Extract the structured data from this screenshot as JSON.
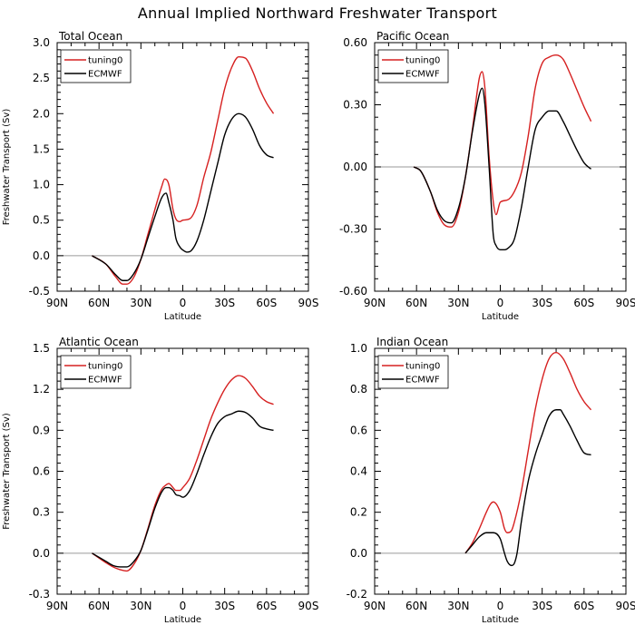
{
  "figure_title": "Annual Implied Northward Freshwater Transport",
  "chart_data": [
    {
      "type": "line",
      "title": "Total Ocean",
      "xlabel": "Latitude",
      "ylabel": "Freshwater Transport (Sv)",
      "xlim": [
        -90,
        90
      ],
      "ylim": [
        -0.5,
        3.0
      ],
      "x_ticks": [
        -90,
        -60,
        -30,
        0,
        30,
        60,
        90
      ],
      "x_tick_labels": [
        "90N",
        "60N",
        "30N",
        "0",
        "30S",
        "60S",
        "90S"
      ],
      "y_ticks": [
        -0.5,
        0.0,
        0.5,
        1.0,
        1.5,
        2.0,
        2.5,
        3.0
      ],
      "y_tick_labels": [
        "-0.5",
        "0.0",
        "0.5",
        "1.0",
        "1.5",
        "2.0",
        "2.5",
        "3.0"
      ],
      "zero_line": true,
      "legend": "top-left",
      "series": [
        {
          "name": "tuning0",
          "color": "#d62020",
          "x": [
            -65,
            -55,
            -48,
            -43,
            -40,
            -35,
            -30,
            -25,
            -20,
            -15,
            -13,
            -10,
            -7,
            -5,
            -2,
            0,
            5,
            10,
            15,
            20,
            25,
            30,
            35,
            40,
            45,
            50,
            55,
            60,
            65
          ],
          "y": [
            0.0,
            -0.12,
            -0.3,
            -0.4,
            -0.4,
            -0.3,
            -0.05,
            0.3,
            0.65,
            0.98,
            1.08,
            1.0,
            0.65,
            0.52,
            0.48,
            0.5,
            0.52,
            0.7,
            1.1,
            1.45,
            1.9,
            2.35,
            2.65,
            2.8,
            2.78,
            2.6,
            2.35,
            2.15,
            2.0
          ]
        },
        {
          "name": "ECMWF",
          "color": "#000000",
          "x": [
            -65,
            -55,
            -48,
            -43,
            -40,
            -35,
            -30,
            -25,
            -20,
            -15,
            -12,
            -10,
            -7,
            -5,
            -2,
            0,
            3,
            6,
            10,
            15,
            20,
            25,
            30,
            35,
            40,
            45,
            50,
            55,
            60,
            65
          ],
          "y": [
            0.0,
            -0.12,
            -0.27,
            -0.35,
            -0.35,
            -0.25,
            -0.05,
            0.25,
            0.55,
            0.82,
            0.88,
            0.75,
            0.5,
            0.25,
            0.12,
            0.08,
            0.05,
            0.07,
            0.2,
            0.5,
            0.9,
            1.3,
            1.7,
            1.92,
            2.0,
            1.95,
            1.78,
            1.55,
            1.42,
            1.38
          ]
        }
      ]
    },
    {
      "type": "line",
      "title": "Pacific Ocean",
      "xlabel": "Latitude",
      "ylabel": "",
      "xlim": [
        -90,
        90
      ],
      "ylim": [
        -0.6,
        0.6
      ],
      "x_ticks": [
        -90,
        -60,
        -30,
        0,
        30,
        60,
        90
      ],
      "x_tick_labels": [
        "90N",
        "60N",
        "30N",
        "0",
        "30S",
        "60S",
        "90S"
      ],
      "y_ticks": [
        -0.6,
        -0.3,
        0.0,
        0.3,
        0.6
      ],
      "y_tick_labels": [
        "-0.60",
        "-0.30",
        "0.00",
        "0.30",
        "0.60"
      ],
      "zero_line": true,
      "legend": "top-left",
      "series": [
        {
          "name": "tuning0",
          "color": "#d62020",
          "x": [
            -62,
            -57,
            -50,
            -45,
            -40,
            -35,
            -30,
            -25,
            -20,
            -15,
            -13,
            -11,
            -8,
            -5,
            -3,
            0,
            5,
            10,
            15,
            20,
            25,
            30,
            35,
            40,
            45,
            50,
            55,
            60,
            65
          ],
          "y": [
            0.0,
            -0.02,
            -0.12,
            -0.22,
            -0.28,
            -0.29,
            -0.22,
            -0.05,
            0.18,
            0.43,
            0.46,
            0.38,
            0.05,
            -0.17,
            -0.23,
            -0.17,
            -0.16,
            -0.12,
            -0.03,
            0.15,
            0.38,
            0.5,
            0.53,
            0.54,
            0.52,
            0.45,
            0.37,
            0.29,
            0.22
          ]
        },
        {
          "name": "ECMWF",
          "color": "#000000",
          "x": [
            -62,
            -57,
            -50,
            -45,
            -40,
            -35,
            -30,
            -25,
            -20,
            -15,
            -13,
            -11,
            -8,
            -5,
            -3,
            0,
            3,
            6,
            10,
            15,
            20,
            25,
            30,
            35,
            40,
            45,
            50,
            55,
            60,
            63,
            65
          ],
          "y": [
            0.0,
            -0.02,
            -0.12,
            -0.21,
            -0.26,
            -0.27,
            -0.2,
            -0.05,
            0.17,
            0.35,
            0.38,
            0.3,
            0.0,
            -0.33,
            -0.38,
            -0.4,
            -0.4,
            -0.39,
            -0.35,
            -0.2,
            0.0,
            0.18,
            0.24,
            0.27,
            0.27,
            0.22,
            0.15,
            0.08,
            0.02,
            0.0,
            -0.01
          ]
        }
      ]
    },
    {
      "type": "line",
      "title": "Atlantic Ocean",
      "xlabel": "Latitude",
      "ylabel": "Freshwater Transport (Sv)",
      "xlim": [
        -90,
        90
      ],
      "ylim": [
        -0.3,
        1.5
      ],
      "x_ticks": [
        -90,
        -60,
        -30,
        0,
        30,
        60,
        90
      ],
      "x_tick_labels": [
        "90N",
        "60N",
        "30N",
        "0",
        "30S",
        "60S",
        "90S"
      ],
      "y_ticks": [
        -0.3,
        0.0,
        0.3,
        0.6,
        0.9,
        1.2,
        1.5
      ],
      "y_tick_labels": [
        "-0.3",
        "0.0",
        "0.3",
        "0.6",
        "0.9",
        "1.2",
        "1.5"
      ],
      "zero_line": true,
      "legend": "top-left",
      "series": [
        {
          "name": "tuning0",
          "color": "#d62020",
          "x": [
            -65,
            -55,
            -50,
            -45,
            -40,
            -35,
            -30,
            -25,
            -20,
            -15,
            -12,
            -10,
            -7,
            -5,
            -2,
            0,
            5,
            10,
            15,
            20,
            25,
            30,
            35,
            40,
            45,
            50,
            55,
            60,
            65
          ],
          "y": [
            0.0,
            -0.07,
            -0.1,
            -0.12,
            -0.13,
            -0.08,
            0.02,
            0.18,
            0.35,
            0.47,
            0.5,
            0.51,
            0.48,
            0.46,
            0.46,
            0.48,
            0.55,
            0.68,
            0.83,
            0.98,
            1.1,
            1.2,
            1.27,
            1.3,
            1.28,
            1.22,
            1.15,
            1.11,
            1.09
          ]
        },
        {
          "name": "ECMWF",
          "color": "#000000",
          "x": [
            -65,
            -55,
            -50,
            -45,
            -40,
            -35,
            -30,
            -25,
            -20,
            -15,
            -12,
            -10,
            -7,
            -5,
            -2,
            0,
            5,
            10,
            15,
            20,
            25,
            30,
            35,
            40,
            45,
            50,
            55,
            60,
            65
          ],
          "y": [
            0.0,
            -0.06,
            -0.09,
            -0.1,
            -0.1,
            -0.06,
            0.02,
            0.17,
            0.33,
            0.45,
            0.48,
            0.48,
            0.46,
            0.43,
            0.42,
            0.41,
            0.46,
            0.58,
            0.72,
            0.85,
            0.95,
            1.0,
            1.02,
            1.04,
            1.03,
            0.99,
            0.93,
            0.91,
            0.9
          ]
        }
      ]
    },
    {
      "type": "line",
      "title": "Indian Ocean",
      "xlabel": "Latitude",
      "ylabel": "",
      "xlim": [
        -90,
        90
      ],
      "ylim": [
        -0.2,
        1.0
      ],
      "x_ticks": [
        -90,
        -60,
        -30,
        0,
        30,
        60,
        90
      ],
      "x_tick_labels": [
        "90N",
        "60N",
        "30N",
        "0",
        "30S",
        "60S",
        "90S"
      ],
      "y_ticks": [
        -0.2,
        0.0,
        0.2,
        0.4,
        0.6,
        0.8,
        1.0
      ],
      "y_tick_labels": [
        "-0.2",
        "0.0",
        "0.2",
        "0.4",
        "0.6",
        "0.8",
        "1.0"
      ],
      "zero_line": true,
      "legend": "top-left",
      "series": [
        {
          "name": "tuning0",
          "color": "#d62020",
          "x": [
            -25,
            -20,
            -15,
            -10,
            -7,
            -5,
            0,
            3,
            5,
            8,
            10,
            15,
            20,
            25,
            30,
            35,
            40,
            45,
            50,
            55,
            60,
            65
          ],
          "y": [
            0.0,
            0.05,
            0.12,
            0.2,
            0.24,
            0.25,
            0.2,
            0.12,
            0.1,
            0.11,
            0.15,
            0.3,
            0.5,
            0.7,
            0.85,
            0.95,
            0.98,
            0.95,
            0.88,
            0.8,
            0.74,
            0.7
          ]
        },
        {
          "name": "ECMWF",
          "color": "#000000",
          "x": [
            -25,
            -20,
            -15,
            -10,
            -7,
            -5,
            0,
            3,
            5,
            8,
            10,
            12,
            15,
            20,
            25,
            30,
            35,
            40,
            43,
            45,
            50,
            55,
            60,
            65
          ],
          "y": [
            0.0,
            0.04,
            0.08,
            0.1,
            0.1,
            0.1,
            0.07,
            0.0,
            -0.04,
            -0.06,
            -0.05,
            0.0,
            0.15,
            0.35,
            0.48,
            0.58,
            0.67,
            0.7,
            0.7,
            0.68,
            0.62,
            0.55,
            0.49,
            0.48
          ]
        }
      ]
    }
  ]
}
